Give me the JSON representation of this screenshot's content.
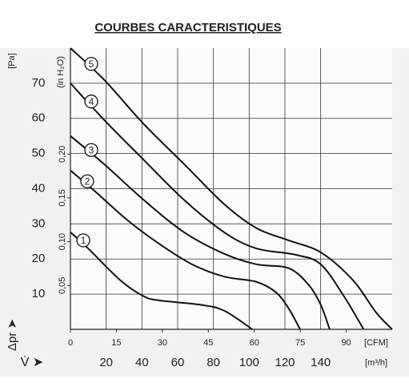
{
  "chart_data": {
    "type": "line",
    "title": "COURBES CARACTERISTIQUES",
    "y_label": "[Pa]",
    "y2_label": "(in H₂O)",
    "y_axis_symbol": "Δpr ➤",
    "x_label": "[m³/h]",
    "x2_label": "[CFM]",
    "x_axis_symbol": "V̇ ➤",
    "xlim": [
      0,
      180
    ],
    "xticks": [
      20,
      40,
      60,
      80,
      100,
      120,
      140
    ],
    "x2lim": [
      0,
      105
    ],
    "x2ticks": [
      0,
      15,
      30,
      45,
      60,
      75,
      90
    ],
    "ylim": [
      0,
      80
    ],
    "yticks": [
      10,
      20,
      30,
      40,
      50,
      60,
      70
    ],
    "y2lim": [
      0,
      0.321
    ],
    "y2ticks": [
      {
        "value": 0.05,
        "label": "0,05"
      },
      {
        "value": 0.1,
        "label": "0,10"
      },
      {
        "value": 0.15,
        "label": "0,15"
      },
      {
        "value": 0.2,
        "label": "0,20"
      }
    ],
    "grid": true,
    "color": "#111111",
    "series": [
      {
        "name": "1",
        "x": [
          0,
          9.9,
          27.8,
          41,
          50,
          72.5,
          86,
          101.7
        ],
        "values": [
          27.6,
          23,
          14,
          9.4,
          8.2,
          7,
          5.3,
          0
        ]
      },
      {
        "name": "2",
        "x": [
          0,
          14.3,
          32,
          50,
          68,
          86,
          104,
          115,
          122,
          128.5
        ],
        "values": [
          45.2,
          39,
          31,
          24.2,
          18.5,
          15,
          13.5,
          10.5,
          6,
          0
        ]
      },
      {
        "name": "3",
        "x": [
          0,
          18.8,
          41,
          63.6,
          86,
          104,
          122,
          133,
          140,
          145
        ],
        "values": [
          55,
          47,
          36.8,
          27.6,
          21.5,
          18.5,
          17.4,
          12.8,
          7,
          0
        ]
      },
      {
        "name": "4",
        "x": [
          0,
          18.8,
          41,
          63.6,
          86,
          104,
          126,
          140,
          153,
          164
        ],
        "values": [
          70,
          59.6,
          48.2,
          36.8,
          27.6,
          23,
          21.2,
          18.5,
          9.4,
          0
        ]
      },
      {
        "name": "5",
        "x": [
          0,
          18.8,
          41,
          63.6,
          86,
          104,
          122,
          140,
          158,
          171,
          180
        ],
        "values": [
          80,
          71,
          58.4,
          47,
          35.6,
          28.8,
          25.3,
          21.9,
          14,
          4.8,
          0
        ]
      }
    ]
  }
}
